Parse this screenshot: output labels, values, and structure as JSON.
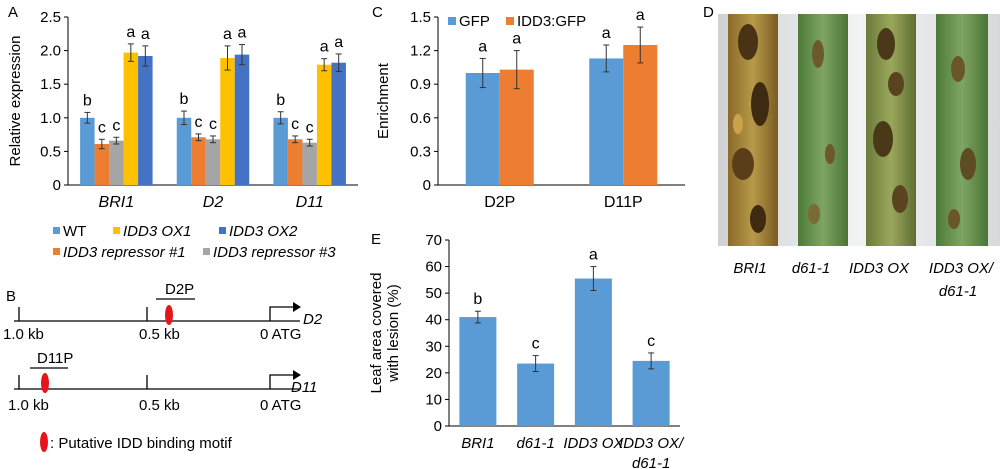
{
  "panel_labels": {
    "a": "A",
    "b": "B",
    "c": "C",
    "d": "D",
    "e": "E"
  },
  "chart_data": [
    {
      "id": "A",
      "type": "bar",
      "ylabel": "Relative expression",
      "ylim": [
        0,
        2.5
      ],
      "yticks": [
        "0",
        "0.5",
        "1.0",
        "1.5",
        "2.0",
        "2.5"
      ],
      "categories": [
        "BRI1",
        "D2",
        "D11"
      ],
      "series": [
        {
          "name": "WT",
          "color": "#5b9bd5",
          "values": [
            1.0,
            1.0,
            1.0
          ],
          "errors": [
            0.08,
            0.1,
            0.09
          ],
          "letters": [
            "b",
            "b",
            "b"
          ]
        },
        {
          "name": "IDD3 repressor #1",
          "color": "#ed7d31",
          "values": [
            0.61,
            0.71,
            0.68
          ],
          "errors": [
            0.07,
            0.05,
            0.05
          ],
          "letters": [
            "c",
            "c",
            "c"
          ]
        },
        {
          "name": "IDD3 repressor #3",
          "color": "#a5a5a5",
          "values": [
            0.66,
            0.68,
            0.63
          ],
          "errors": [
            0.05,
            0.05,
            0.05
          ],
          "letters": [
            "c",
            "c",
            "c"
          ]
        },
        {
          "name": "IDD3 OX1",
          "color": "#ffc000",
          "values": [
            1.97,
            1.89,
            1.79
          ],
          "errors": [
            0.13,
            0.18,
            0.09
          ],
          "letters": [
            "a",
            "a",
            "a"
          ]
        },
        {
          "name": "IDD3 OX2",
          "color": "#4472c4",
          "values": [
            1.92,
            1.94,
            1.82
          ],
          "errors": [
            0.15,
            0.15,
            0.13
          ],
          "letters": [
            "a",
            "a",
            "a"
          ]
        }
      ],
      "legend": [
        {
          "label": "WT",
          "color": "#5b9bd5"
        },
        {
          "label": "IDD3 OX1",
          "color": "#ffc000"
        },
        {
          "label": "IDD3 OX2",
          "color": "#4472c4"
        },
        {
          "label": "IDD3 repressor #1",
          "color": "#ed7d31"
        },
        {
          "label": "IDD3 repressor #3",
          "color": "#a5a5a5"
        }
      ]
    },
    {
      "id": "C",
      "type": "bar",
      "ylabel": "Enrichment",
      "ylim": [
        0,
        1.5
      ],
      "yticks": [
        "0",
        "0.3",
        "0.6",
        "0.9",
        "1.2",
        "1.5"
      ],
      "categories": [
        "D2P",
        "D11P"
      ],
      "series": [
        {
          "name": "GFP",
          "color": "#5b9bd5",
          "values": [
            1.0,
            1.13
          ],
          "errors": [
            0.13,
            0.12
          ],
          "letters": [
            "a",
            "a"
          ]
        },
        {
          "name": "IDD3:GFP",
          "color": "#ed7d31",
          "values": [
            1.03,
            1.25
          ],
          "errors": [
            0.17,
            0.16
          ],
          "letters": [
            "a",
            "a"
          ]
        }
      ],
      "legend": [
        {
          "label": "GFP",
          "color": "#5b9bd5"
        },
        {
          "label": "IDD3:GFP",
          "color": "#ed7d31"
        }
      ]
    },
    {
      "id": "E",
      "type": "bar",
      "ylabel": "Leaf area covered with lesion (%)",
      "ylabel_lines": [
        "Leaf area covered",
        "with lesion (%)"
      ],
      "ylim": [
        0,
        70
      ],
      "yticks": [
        "0",
        "10",
        "20",
        "30",
        "40",
        "50",
        "60",
        "70"
      ],
      "categories": [
        "BRI1",
        "d61-1",
        "IDD3 OX",
        "IDD3 OX/ d61-1"
      ],
      "category_lines": [
        [
          "BRI1"
        ],
        [
          "d61-1"
        ],
        [
          "IDD3 OX"
        ],
        [
          "IDD3 OX/",
          "d61-1"
        ]
      ],
      "series": [
        {
          "name": "",
          "color": "#5b9bd5",
          "values": [
            41,
            23.5,
            55.5,
            24.5
          ],
          "errors": [
            2.2,
            3.0,
            4.5,
            3.0
          ],
          "letters": [
            "b",
            "c",
            "a",
            "c"
          ]
        }
      ]
    }
  ],
  "promoter_diagram": {
    "d2": {
      "fragment": "D2P",
      "gene": "D2",
      "scale": [
        "1.0 kb",
        "0.5 kb",
        "0 ATG"
      ]
    },
    "d11": {
      "fragment": "D11P",
      "gene": "D11",
      "scale": [
        "1.0 kb",
        "0.5 kb",
        "0 ATG"
      ]
    },
    "motif_legend": ": Putative IDD binding motif",
    "motif_color": "#e8141b"
  },
  "photo_labels": [
    "BRI1",
    "d61-1",
    "IDD3 OX",
    "IDD3 OX/",
    "d61-1"
  ]
}
